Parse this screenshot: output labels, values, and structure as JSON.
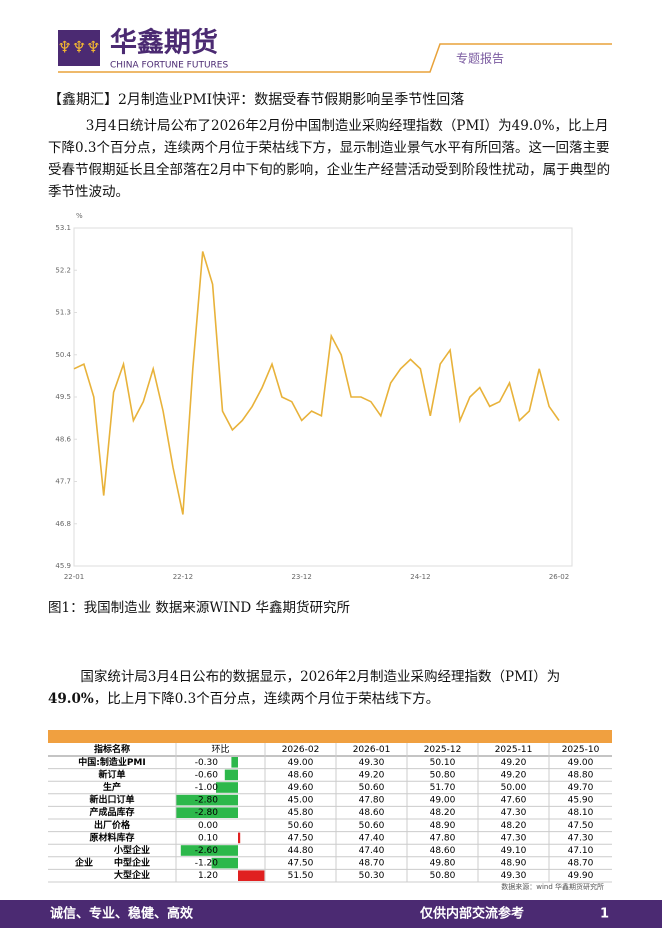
{
  "header": {
    "brand": "华鑫期货",
    "brand_en": "CHINA FORTUNE FUTURES",
    "report_type": "专题报告"
  },
  "headline": "【鑫期汇】2月制造业PMI快评：数据受春节假期影响呈季节性回落",
  "paragraph_1": "3月4日统计局公布了2026年2月份中国制造业采购经理指数（PMI）为49.0%，比上月下降0.3个百分点，连续两个月位于荣枯线下方，显示制造业景气水平有所回落。这一回落主要受春节假期延长且全部落在2月中下旬的影响，企业生产经营活动受到阶段性扰动，属于典型的季节性波动。",
  "chart_data": {
    "type": "line",
    "y_unit": "%",
    "color": "#e8b23a",
    "categories": [
      "22-01",
      null,
      null,
      null,
      null,
      null,
      null,
      null,
      null,
      null,
      null,
      "22-12",
      null,
      null,
      null,
      null,
      null,
      null,
      null,
      null,
      null,
      null,
      null,
      "23-12",
      null,
      null,
      null,
      null,
      null,
      null,
      null,
      null,
      null,
      null,
      null,
      "24-12",
      null,
      null,
      null,
      null,
      null,
      null,
      null,
      null,
      null,
      null,
      null,
      null,
      null,
      "26-02"
    ],
    "values": [
      50.1,
      50.2,
      49.5,
      47.4,
      49.6,
      50.2,
      49.0,
      49.4,
      50.1,
      49.2,
      48.0,
      47.0,
      50.1,
      52.6,
      51.9,
      49.2,
      48.8,
      49.0,
      49.3,
      49.7,
      50.2,
      49.5,
      49.4,
      49.0,
      49.2,
      49.1,
      50.8,
      50.4,
      49.5,
      49.5,
      49.4,
      49.1,
      49.8,
      50.1,
      50.3,
      50.1,
      49.1,
      50.2,
      50.5,
      49.0,
      49.5,
      49.7,
      49.3,
      49.4,
      49.8,
      49.0,
      49.2,
      50.1,
      49.3,
      49.0
    ],
    "ylim": [
      45.9,
      53.1
    ],
    "yticks": [
      45.9,
      46.8,
      47.7,
      48.6,
      49.5,
      50.4,
      51.3,
      52.2,
      53.1
    ],
    "grid": false
  },
  "figure_caption": "图1：我国制造业 数据来源WIND 华鑫期货研究所",
  "paragraph_2": {
    "before": "国家统计局3月4日公布的数据显示，2026年2月制造业采购经理指数（PMI）为",
    "bold": "49.0%",
    "after": "，比上月下降0.3个百分点，连续两个月位于荣枯线下方。"
  },
  "table": {
    "header": [
      "指标名称",
      "环比",
      "2026-02",
      "2026-01",
      "2025-12",
      "2025-11",
      "2025-10"
    ],
    "group_label": "企业",
    "rows": [
      {
        "name": "中国:制造业PMI",
        "change": -0.3,
        "change_label": "-0.30",
        "values": [
          "49.00",
          "49.30",
          "50.10",
          "49.20",
          "49.00"
        ]
      },
      {
        "name": "新订单",
        "change": -0.6,
        "change_label": "-0.60",
        "values": [
          "48.60",
          "49.20",
          "50.80",
          "49.20",
          "48.80"
        ]
      },
      {
        "name": "生产",
        "change": -1.0,
        "change_label": "-1.00",
        "values": [
          "49.60",
          "50.60",
          "51.70",
          "50.00",
          "49.70"
        ]
      },
      {
        "name": "新出口订单",
        "change": -2.8,
        "change_label": "-2.80",
        "values": [
          "45.00",
          "47.80",
          "49.00",
          "47.60",
          "45.90"
        ]
      },
      {
        "name": "产成品库存",
        "change": -2.8,
        "change_label": "-2.80",
        "values": [
          "45.80",
          "48.60",
          "48.20",
          "47.30",
          "48.10"
        ]
      },
      {
        "name": "出厂价格",
        "change": 0,
        "change_label": "0.00",
        "values": [
          "50.60",
          "50.60",
          "48.90",
          "48.20",
          "47.50"
        ]
      },
      {
        "name": "原材料库存",
        "change": 0.1,
        "change_label": "0.10",
        "values": [
          "47.50",
          "47.40",
          "47.80",
          "47.30",
          "47.30"
        ]
      },
      {
        "name": "小型企业",
        "change": -2.6,
        "change_label": "-2.60",
        "values": [
          "44.80",
          "47.40",
          "48.60",
          "49.10",
          "47.10"
        ]
      },
      {
        "name": "中型企业",
        "change": -1.2,
        "change_label": "-1.20",
        "values": [
          "47.50",
          "48.70",
          "49.80",
          "48.90",
          "48.70"
        ]
      },
      {
        "name": "大型企业",
        "change": 1.2,
        "change_label": "1.20",
        "values": [
          "51.50",
          "50.30",
          "50.80",
          "49.30",
          "49.90"
        ]
      }
    ],
    "source": "数据来源：wind 华鑫期货研究所"
  },
  "footer": {
    "motto": "诚信、专业、稳健、高效",
    "notice": "仅供内部交流参考",
    "page": "1"
  }
}
